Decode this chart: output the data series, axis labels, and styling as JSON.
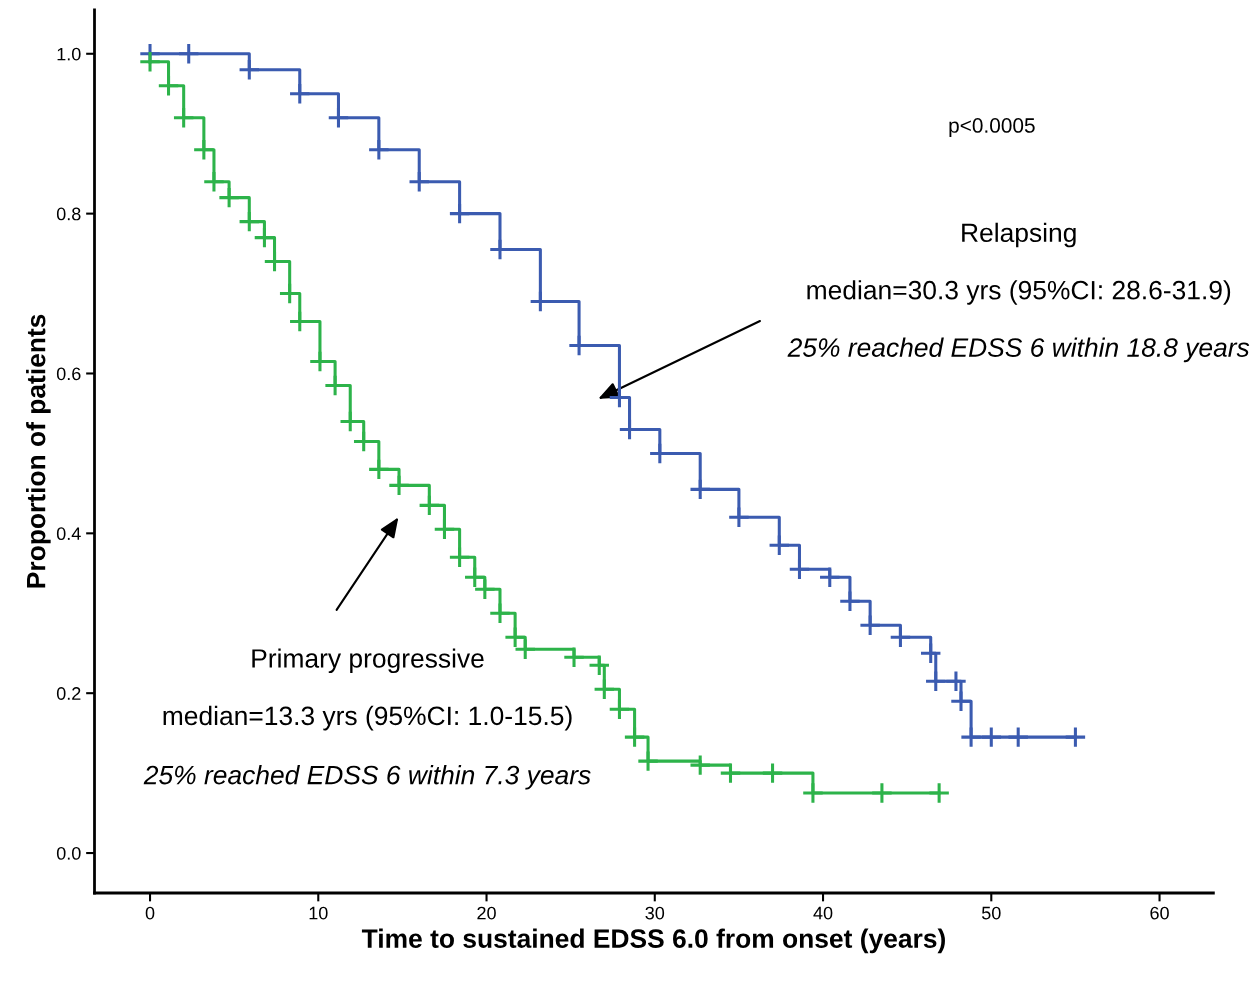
{
  "chart_data": {
    "type": "step",
    "xlabel": "Time to sustained EDSS 6.0 from onset (years)",
    "ylabel": "Proportion of patients",
    "xlim": [
      -3.3,
      63.2
    ],
    "ylim": [
      -0.05,
      1.055
    ],
    "xticks": [
      0,
      10,
      20,
      30,
      40,
      50,
      60
    ],
    "yticks": [
      {
        "value": 0,
        "label": "0.0"
      },
      0.2,
      0.4,
      0.6,
      0.8,
      {
        "value": 1,
        "label": "1.0"
      }
    ],
    "grid": false,
    "marker": "cross",
    "line_style": "solid",
    "series": [
      {
        "color": "#3b5bb0",
        "x": [
          0,
          2.3,
          5.9,
          8.9,
          11.2,
          13.6,
          16,
          18.4,
          20.8,
          23.2,
          25.5,
          27.9,
          28.5,
          30.3,
          32.7,
          35,
          37.4,
          38.6,
          40.4,
          41.6,
          42.8,
          44.6,
          46.4,
          46.7,
          47.9,
          48.2,
          48.8,
          50,
          51.6,
          55
        ],
        "values": [
          1.0,
          1.0,
          0.98,
          0.95,
          0.92,
          0.88,
          0.84,
          0.8,
          0.755,
          0.69,
          0.635,
          0.57,
          0.53,
          0.5,
          0.455,
          0.42,
          0.385,
          0.355,
          0.345,
          0.315,
          0.285,
          0.27,
          0.25,
          0.215,
          0.215,
          0.19,
          0.145,
          0.145,
          0.145,
          0.145
        ]
      },
      {
        "color": "#2db34a",
        "x": [
          0,
          1.1,
          2,
          3.2,
          3.8,
          4.7,
          5.9,
          6.8,
          7.4,
          8.3,
          8.9,
          10.1,
          11,
          11.9,
          12.7,
          13.6,
          14.8,
          16.6,
          17.5,
          18.4,
          19.3,
          19.9,
          20.8,
          21.7,
          22.3,
          25.2,
          26.7,
          27,
          27.9,
          28.8,
          29.6,
          32.7,
          34.5,
          37,
          39.4,
          43.5,
          46.9
        ],
        "values": [
          0.99,
          0.96,
          0.92,
          0.88,
          0.84,
          0.82,
          0.79,
          0.77,
          0.74,
          0.7,
          0.665,
          0.615,
          0.585,
          0.54,
          0.515,
          0.48,
          0.46,
          0.435,
          0.405,
          0.37,
          0.345,
          0.33,
          0.3,
          0.27,
          0.255,
          0.245,
          0.235,
          0.205,
          0.18,
          0.145,
          0.115,
          0.11,
          0.1,
          0.1,
          0.075,
          0.075,
          0.075
        ]
      }
    ],
    "annotations": [
      "p<0.0005",
      "Relapsing",
      "median=30.3 yrs (95%CI: 28.6-31.9)",
      "25% reached EDSS 6 within 18.8 years",
      "Primary progressive",
      "median=13.3 yrs (95%CI: 1.0-15.5)",
      "25% reached EDSS 6 within 7.3 years"
    ]
  }
}
